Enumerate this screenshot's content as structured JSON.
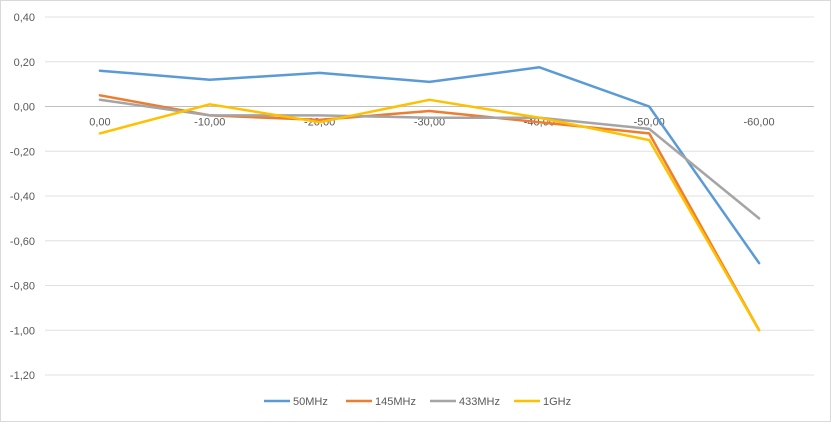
{
  "chart_data": {
    "type": "line",
    "title": "",
    "xlabel": "",
    "ylabel": "",
    "categories": [
      "0,00",
      "-10,00",
      "-20,00",
      "-30,00",
      "-40,00",
      "-50,00",
      "-60,00"
    ],
    "ylim": [
      -1.2,
      0.4
    ],
    "yticks": [
      0.4,
      0.2,
      0.0,
      -0.2,
      -0.4,
      -0.6,
      -0.8,
      -1.0,
      -1.2
    ],
    "ytick_labels": [
      "0,40",
      "0,20",
      "0,00",
      "-0,20",
      "-0,40",
      "-0,60",
      "-0,80",
      "-1,00",
      "-1,20"
    ],
    "grid": "horizontal",
    "legend_position": "bottom",
    "series": [
      {
        "name": "50MHz",
        "color": "#5b9bd5",
        "values": [
          0.16,
          0.12,
          0.15,
          0.11,
          0.175,
          0.0,
          -0.7
        ]
      },
      {
        "name": "145MHz",
        "color": "#ed7d31",
        "values": [
          0.05,
          -0.04,
          -0.06,
          -0.02,
          -0.07,
          -0.12,
          -1.0
        ]
      },
      {
        "name": "433MHz",
        "color": "#a5a5a5",
        "values": [
          0.03,
          -0.04,
          -0.04,
          -0.05,
          -0.05,
          -0.1,
          -0.5
        ]
      },
      {
        "name": "1GHz",
        "color": "#ffc000",
        "values": [
          -0.12,
          0.01,
          -0.07,
          0.03,
          -0.05,
          -0.15,
          -1.0
        ]
      }
    ]
  }
}
